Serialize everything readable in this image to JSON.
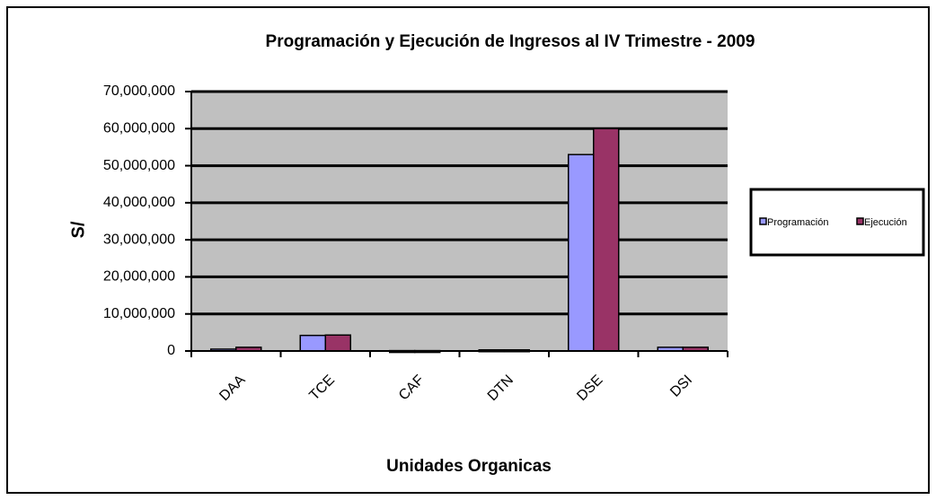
{
  "chart_data": {
    "type": "bar",
    "title": "Programación y Ejecución de Ingresos al IV Trimestre - 2009",
    "x_label": "Unidades Organicas",
    "y_label": "S/",
    "categories": [
      "DAA",
      "TCE",
      "CAF",
      "DTN",
      "DSE",
      "DSI"
    ],
    "series": [
      {
        "name": "Programación",
        "color": "#9999ff",
        "values": [
          500000,
          4200000,
          100000,
          300000,
          53000000,
          1000000
        ]
      },
      {
        "name": "Ejecución",
        "color": "#993366",
        "values": [
          1000000,
          4300000,
          100000,
          300000,
          60000000,
          1000000
        ]
      }
    ],
    "ylim": [
      0,
      70000000
    ],
    "yticks": [
      0,
      {
        "value": 10000000,
        "label": "10,000,000"
      },
      {
        "value": 20000000,
        "label": "20,000,000"
      },
      {
        "value": 30000000,
        "label": "30,000,000"
      },
      {
        "value": 40000000,
        "label": "40,000,000"
      },
      {
        "value": 50000000,
        "label": "50,000,000"
      },
      {
        "value": 60000000,
        "label": "60,000,000"
      },
      {
        "value": 70000000,
        "label": "70,000,000"
      }
    ],
    "grid": true,
    "legend": "right"
  }
}
